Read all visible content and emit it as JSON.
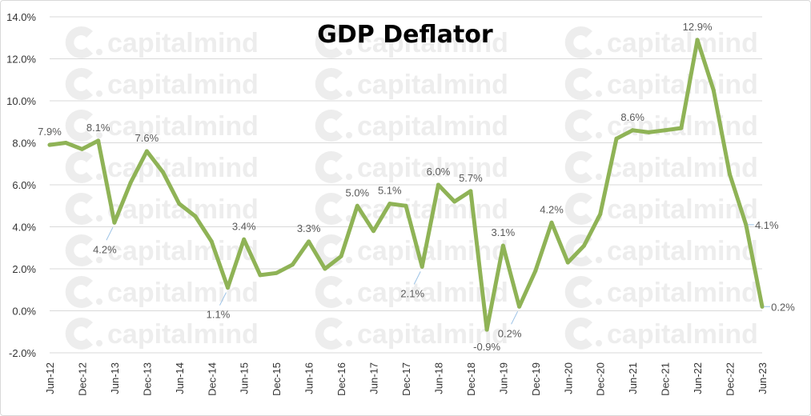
{
  "watermark": {
    "brand": "capitalmind"
  },
  "chart_data": {
    "type": "line",
    "title": "GDP Deflator",
    "xlabel": "",
    "ylabel": "",
    "ylim": [
      -2,
      14
    ],
    "yticks": [
      "14.0%",
      "12.0%",
      "10.0%",
      "8.0%",
      "6.0%",
      "4.0%",
      "2.0%",
      "0.0%",
      "-2.0%"
    ],
    "ytick_values": [
      14,
      12,
      10,
      8,
      6,
      4,
      2,
      0,
      -2
    ],
    "grid": true,
    "legend": "none",
    "line_color": "#8fb356",
    "x": [
      "Jun-12",
      "Sep-12",
      "Dec-12",
      "Mar-13",
      "Jun-13",
      "Sep-13",
      "Dec-13",
      "Mar-14",
      "Jun-14",
      "Sep-14",
      "Dec-14",
      "Mar-15",
      "Jun-15",
      "Sep-15",
      "Dec-15",
      "Mar-16",
      "Jun-16",
      "Sep-16",
      "Dec-16",
      "Mar-17",
      "Jun-17",
      "Sep-17",
      "Dec-17",
      "Mar-18",
      "Jun-18",
      "Sep-18",
      "Dec-18",
      "Mar-19",
      "Jun-19",
      "Sep-19",
      "Dec-19",
      "Mar-20",
      "Jun-20",
      "Sep-20",
      "Dec-20",
      "Mar-21",
      "Jun-21",
      "Sep-21",
      "Dec-21",
      "Mar-22",
      "Jun-22",
      "Sep-22",
      "Dec-22",
      "Mar-23",
      "Jun-23"
    ],
    "x_tick_labels": [
      "Jun-12",
      "Dec-12",
      "Jun-13",
      "Dec-13",
      "Jun-14",
      "Dec-14",
      "Jun-15",
      "Dec-15",
      "Jun-16",
      "Dec-16",
      "Jun-17",
      "Dec-17",
      "Jun-18",
      "Dec-18",
      "Jun-19",
      "Dec-19",
      "Jun-20",
      "Dec-20",
      "Jun-21",
      "Dec-21",
      "Jun-22",
      "Dec-22",
      "Jun-23"
    ],
    "series": [
      {
        "name": "GDP Deflator",
        "values": [
          7.9,
          8.0,
          7.7,
          8.1,
          4.2,
          6.1,
          7.6,
          6.6,
          5.1,
          4.5,
          3.3,
          1.1,
          3.4,
          1.7,
          1.8,
          2.2,
          3.3,
          2.0,
          2.6,
          5.0,
          3.8,
          5.1,
          5.0,
          2.1,
          6.0,
          5.2,
          5.7,
          -0.9,
          3.1,
          0.2,
          1.9,
          4.2,
          2.3,
          3.1,
          4.6,
          8.2,
          8.6,
          8.5,
          8.6,
          8.7,
          12.9,
          10.5,
          6.5,
          4.1,
          0.2
        ]
      }
    ],
    "annotations": [
      {
        "index": 0,
        "text": "7.9%",
        "pos": "above"
      },
      {
        "index": 3,
        "text": "8.1%",
        "pos": "above"
      },
      {
        "index": 4,
        "text": "4.2%",
        "pos": "below-left"
      },
      {
        "index": 6,
        "text": "7.6%",
        "pos": "above"
      },
      {
        "index": 11,
        "text": "1.1%",
        "pos": "below-left"
      },
      {
        "index": 12,
        "text": "3.4%",
        "pos": "above"
      },
      {
        "index": 16,
        "text": "3.3%",
        "pos": "above"
      },
      {
        "index": 19,
        "text": "5.0%",
        "pos": "above"
      },
      {
        "index": 21,
        "text": "5.1%",
        "pos": "above"
      },
      {
        "index": 23,
        "text": "2.1%",
        "pos": "below-left"
      },
      {
        "index": 24,
        "text": "6.0%",
        "pos": "above"
      },
      {
        "index": 26,
        "text": "5.7%",
        "pos": "above"
      },
      {
        "index": 27,
        "text": "-0.9%",
        "pos": "below"
      },
      {
        "index": 28,
        "text": "3.1%",
        "pos": "above"
      },
      {
        "index": 29,
        "text": "0.2%",
        "pos": "below-left"
      },
      {
        "index": 31,
        "text": "4.2%",
        "pos": "above"
      },
      {
        "index": 36,
        "text": "8.6%",
        "pos": "above"
      },
      {
        "index": 40,
        "text": "12.9%",
        "pos": "above"
      },
      {
        "index": 43,
        "text": "4.1%",
        "pos": "right"
      },
      {
        "index": 44,
        "text": "0.2%",
        "pos": "right"
      }
    ]
  }
}
